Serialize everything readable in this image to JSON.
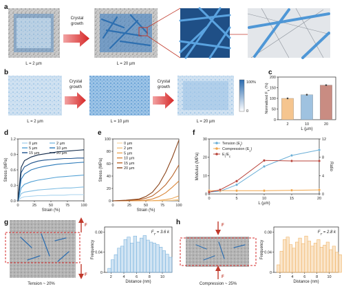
{
  "panels": {
    "a": {
      "label": "a",
      "arrow_text": [
        "Crystal",
        "growth"
      ],
      "captions": [
        "L = 2 µm",
        "L = 20 µm"
      ]
    },
    "b": {
      "label": "b",
      "arrow_texts": [
        [
          "Crystal",
          "growth"
        ],
        [
          "Crystal",
          "growth"
        ]
      ],
      "captions": [
        "L = 2 µm",
        "L = 10 µm",
        "L = 20 µm"
      ],
      "colorbar": {
        "top": "100%",
        "bottom": "0"
      }
    },
    "c": {
      "label": "c"
    },
    "d": {
      "label": "d"
    },
    "e": {
      "label": "e"
    },
    "f": {
      "label": "f"
    },
    "g": {
      "label": "g",
      "caption": "Tension ~ 20%",
      "force_labels": [
        "F",
        "F"
      ]
    },
    "h": {
      "label": "h",
      "caption": "Compression ~ 25%",
      "force_labels": [
        "F",
        "F"
      ]
    }
  },
  "chart_data": [
    {
      "id": "c",
      "type": "bar",
      "categories": [
        "2",
        "10",
        "20"
      ],
      "values": [
        100,
        117,
        162
      ],
      "errors": [
        2,
        2,
        3
      ],
      "colors": [
        "#f5c58f",
        "#9fc2e0",
        "#c98c82"
      ],
      "xlabel": "L (µm)",
      "ylabel": "Normalized F_T (%)",
      "ylim": [
        0,
        200
      ],
      "yticks": [
        0,
        50,
        100,
        150,
        200
      ]
    },
    {
      "id": "d",
      "type": "line",
      "xlabel": "Strain (%)",
      "ylabel": "Stress (MPa)",
      "xlim": [
        0,
        100
      ],
      "ylim": [
        0,
        1.2
      ],
      "xticks": [
        0,
        25,
        50,
        75,
        100
      ],
      "yticks": [
        0.0,
        0.3,
        0.6,
        0.9,
        1.2
      ],
      "legend_position": "top",
      "series": [
        {
          "name": "0 µm",
          "color": "#a9d3ee",
          "x": [
            0,
            5,
            10,
            20,
            30,
            40,
            50,
            60,
            70,
            80,
            90,
            100
          ],
          "y": [
            0,
            0.06,
            0.08,
            0.09,
            0.1,
            0.1,
            0.11,
            0.11,
            0.11,
            0.12,
            0.12,
            0.12
          ]
        },
        {
          "name": "2 µm",
          "color": "#7fbde3",
          "x": [
            0,
            5,
            10,
            20,
            30,
            40,
            50,
            60,
            70,
            80,
            90,
            100
          ],
          "y": [
            0,
            0.14,
            0.17,
            0.19,
            0.21,
            0.22,
            0.23,
            0.24,
            0.25,
            0.25,
            0.26,
            0.27
          ]
        },
        {
          "name": "5 µm",
          "color": "#4f9fd4",
          "x": [
            0,
            5,
            10,
            20,
            30,
            40,
            50,
            60,
            70,
            80,
            90,
            100
          ],
          "y": [
            0,
            0.25,
            0.32,
            0.37,
            0.4,
            0.42,
            0.44,
            0.46,
            0.47,
            0.48,
            0.49,
            0.5
          ]
        },
        {
          "name": "10 µm",
          "color": "#2878b8",
          "x": [
            0,
            5,
            10,
            20,
            30,
            40,
            50,
            60,
            70,
            80,
            90,
            100
          ],
          "y": [
            0,
            0.42,
            0.52,
            0.6,
            0.64,
            0.67,
            0.69,
            0.71,
            0.72,
            0.73,
            0.74,
            0.75
          ]
        },
        {
          "name": "15 µm",
          "color": "#1a4f8a",
          "x": [
            0,
            5,
            10,
            20,
            30,
            40,
            50,
            60,
            70,
            80,
            90,
            100
          ],
          "y": [
            0,
            0.55,
            0.66,
            0.73,
            0.77,
            0.79,
            0.8,
            0.81,
            0.82,
            0.82,
            0.83,
            0.83
          ]
        },
        {
          "name": "20 µm",
          "color": "#0e2646",
          "x": [
            0,
            5,
            10,
            20,
            30,
            40,
            50,
            60,
            70,
            80,
            90,
            100
          ],
          "y": [
            0,
            0.65,
            0.78,
            0.85,
            0.89,
            0.91,
            0.93,
            0.95,
            0.96,
            0.97,
            0.98,
            0.99
          ]
        }
      ]
    },
    {
      "id": "e",
      "type": "line",
      "xlabel": "Strain (%)",
      "ylabel": "Stress (MPa)",
      "xlim": [
        0,
        100
      ],
      "ylim": [
        0,
        100
      ],
      "xticks": [
        0,
        25,
        50,
        75,
        100
      ],
      "yticks": [
        0,
        20,
        40,
        60,
        80,
        100
      ],
      "legend_position": "top-left",
      "series": [
        {
          "name": "0 µm",
          "color": "#f7dcae",
          "x": [
            0,
            20,
            40,
            60,
            70,
            80,
            90,
            100
          ],
          "y": [
            0,
            0,
            0,
            0,
            0,
            0.3,
            0.6,
            1
          ]
        },
        {
          "name": "2 µm",
          "color": "#f3c27d",
          "x": [
            0,
            20,
            40,
            60,
            70,
            80,
            90,
            100
          ],
          "y": [
            0,
            0,
            0,
            0,
            0.2,
            0.5,
            1,
            2
          ]
        },
        {
          "name": "5 µm",
          "color": "#eba657",
          "x": [
            0,
            20,
            40,
            60,
            70,
            80,
            90,
            100
          ],
          "y": [
            0,
            0,
            0,
            0.3,
            0.8,
            2,
            4,
            8
          ]
        },
        {
          "name": "10 µm",
          "color": "#d9873a",
          "x": [
            0,
            20,
            40,
            50,
            60,
            70,
            80,
            90,
            100
          ],
          "y": [
            0,
            0,
            0.5,
            1,
            3,
            7,
            13,
            22,
            32
          ]
        },
        {
          "name": "15 µm",
          "color": "#b8642a",
          "x": [
            0,
            20,
            40,
            50,
            60,
            70,
            80,
            90,
            100
          ],
          "y": [
            0,
            0.5,
            2,
            4,
            8,
            16,
            26,
            40,
            58
          ]
        },
        {
          "name": "20 µm",
          "color": "#8a4318",
          "x": [
            0,
            20,
            40,
            50,
            60,
            70,
            80,
            90,
            100
          ],
          "y": [
            0,
            1,
            3,
            7,
            14,
            27,
            46,
            70,
            98
          ]
        }
      ]
    },
    {
      "id": "f",
      "type": "line",
      "xlabel": "L (µm)",
      "ylabel": "Modulus (MPa)",
      "y2label": "Ratio",
      "xlim": [
        0,
        20
      ],
      "ylim": [
        0,
        30
      ],
      "y2lim": [
        0,
        12
      ],
      "xticks": [
        0,
        5,
        10,
        15,
        20
      ],
      "yticks": [
        0,
        10,
        20,
        30
      ],
      "y2ticks": [
        0,
        4,
        8,
        12
      ],
      "legend_position": "top-left",
      "series": [
        {
          "name": "Tension (E_t)",
          "color": "#6aaed6",
          "marker": "circle",
          "axis": "left",
          "x": [
            0,
            2,
            5,
            10,
            15,
            20
          ],
          "y": [
            1,
            1.5,
            5,
            15,
            21,
            24
          ]
        },
        {
          "name": "Compression (E_c)",
          "color": "#f0a64c",
          "marker": "circle",
          "axis": "left",
          "x": [
            0,
            2,
            5,
            10,
            15,
            20
          ],
          "y": [
            1.8,
            1.8,
            1.8,
            1.8,
            2,
            2.2
          ]
        },
        {
          "name": "E_t/E_c",
          "color": "#b8433a",
          "marker": "circle",
          "axis": "right",
          "x": [
            0,
            2,
            5,
            10,
            15,
            20
          ],
          "y": [
            0.4,
            0.9,
            2.8,
            7.3,
            7.2,
            7.2
          ]
        }
      ]
    },
    {
      "id": "g",
      "type": "bar",
      "annotation": "F_T = 3.6 k",
      "xlabel": "Distance (nm)",
      "ylabel": "Frequency",
      "xlim": [
        1,
        11.5
      ],
      "ylim": [
        0,
        0.09
      ],
      "xticks": [
        2,
        4,
        6,
        8,
        10
      ],
      "yticks": [
        0,
        0.04,
        0.08
      ],
      "color": "#7ab3de",
      "bin_start": 1.5,
      "bin_width": 0.5,
      "values": [
        0.008,
        0.025,
        0.035,
        0.048,
        0.052,
        0.065,
        0.07,
        0.058,
        0.072,
        0.06,
        0.068,
        0.073,
        0.064,
        0.06,
        0.058,
        0.055,
        0.05,
        0.043,
        0.036,
        0.03
      ]
    },
    {
      "id": "h",
      "type": "bar",
      "annotation": "F_T = 2.8 k",
      "xlabel": "Distance (nm)",
      "ylabel": "Frequency",
      "xlim": [
        1,
        11.5
      ],
      "ylim": [
        0,
        0.09
      ],
      "xticks": [
        2,
        4,
        6,
        8,
        10
      ],
      "yticks": [
        0,
        0.04,
        0.08
      ],
      "color": "#f0b467",
      "bin_start": 1.5,
      "bin_width": 0.5,
      "values": [
        0.015,
        0.042,
        0.065,
        0.07,
        0.055,
        0.048,
        0.06,
        0.068,
        0.057,
        0.072,
        0.062,
        0.052,
        0.058,
        0.065,
        0.05,
        0.054,
        0.06,
        0.045,
        0.052,
        0.04,
        0.035
      ]
    }
  ]
}
